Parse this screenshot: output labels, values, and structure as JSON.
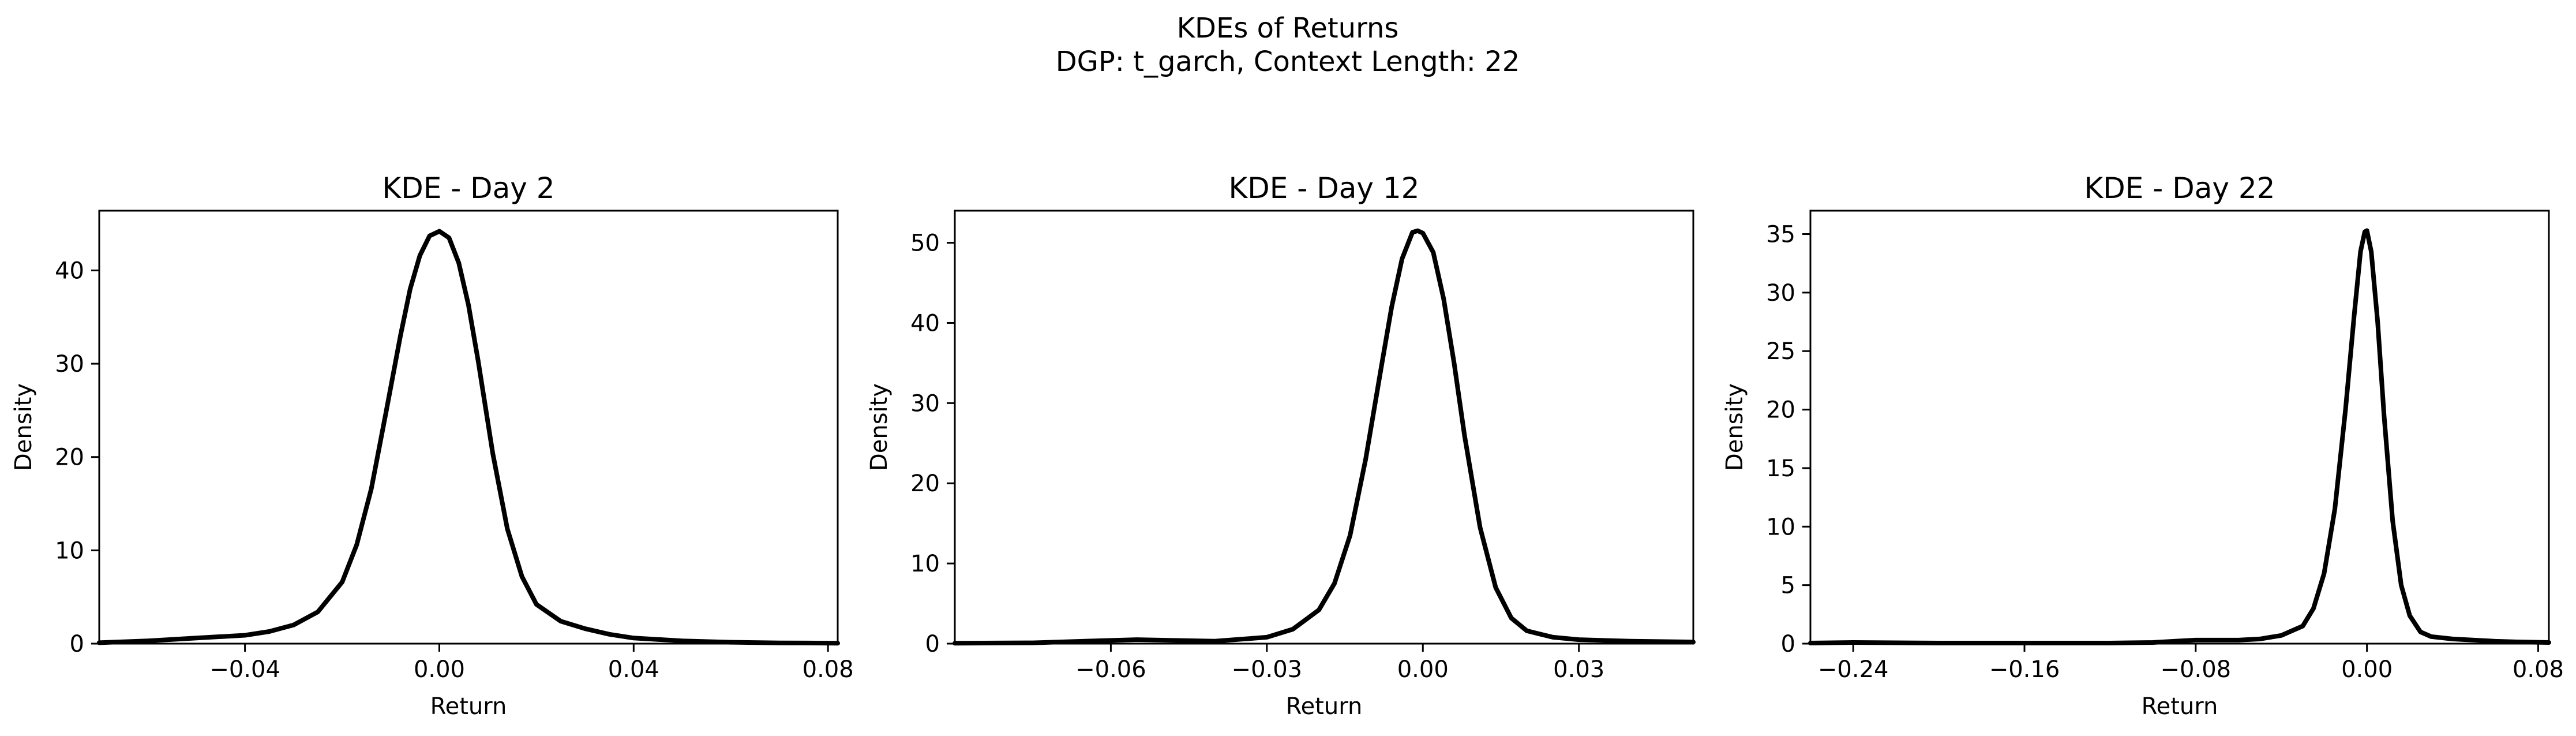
{
  "figure": {
    "suptitle_line1": "KDEs of Returns",
    "suptitle_line2": "DGP: t_garch, Context Length: 22"
  },
  "chart_data": [
    {
      "type": "line",
      "title": "KDE - Day 2",
      "xlabel": "Return",
      "ylabel": "Density",
      "xlim": [
        -0.07,
        0.082
      ],
      "ylim": [
        0,
        46.4
      ],
      "xticks": [
        -0.04,
        0.0,
        0.04,
        0.08
      ],
      "xtick_labels": [
        "−0.04",
        "0.00",
        "0.04",
        "0.08"
      ],
      "yticks": [
        0,
        10,
        20,
        30,
        40
      ],
      "ytick_labels": [
        "0",
        "10",
        "20",
        "30",
        "40"
      ],
      "grid": false,
      "series": [
        {
          "color": "#000000",
          "x": [
            -0.07,
            -0.06,
            -0.05,
            -0.04,
            -0.035,
            -0.03,
            -0.025,
            -0.02,
            -0.017,
            -0.014,
            -0.011,
            -0.008,
            -0.006,
            -0.004,
            -0.002,
            0.0,
            0.002,
            0.004,
            0.006,
            0.008,
            0.011,
            0.014,
            0.017,
            0.02,
            0.025,
            0.03,
            0.035,
            0.04,
            0.05,
            0.06,
            0.07,
            0.082
          ],
          "y": [
            0.1,
            0.3,
            0.6,
            0.9,
            1.3,
            2.0,
            3.4,
            6.6,
            10.6,
            16.6,
            24.7,
            33.0,
            38.0,
            41.6,
            43.7,
            44.2,
            43.5,
            40.8,
            36.3,
            30.3,
            20.4,
            12.3,
            7.2,
            4.2,
            2.4,
            1.6,
            1.0,
            0.6,
            0.3,
            0.15,
            0.08,
            0.05
          ]
        }
      ]
    },
    {
      "type": "line",
      "title": "KDE - Day 12",
      "xlabel": "Return",
      "ylabel": "Density",
      "xlim": [
        -0.09,
        0.052
      ],
      "ylim": [
        0,
        54.0
      ],
      "xticks": [
        -0.06,
        -0.03,
        0.0,
        0.03
      ],
      "xtick_labels": [
        "−0.06",
        "−0.03",
        "0.00",
        "0.03"
      ],
      "yticks": [
        0,
        10,
        20,
        30,
        40,
        50
      ],
      "ytick_labels": [
        "0",
        "10",
        "20",
        "30",
        "40",
        "50"
      ],
      "grid": false,
      "series": [
        {
          "color": "#000000",
          "x": [
            -0.09,
            -0.075,
            -0.065,
            -0.055,
            -0.048,
            -0.04,
            -0.03,
            -0.025,
            -0.02,
            -0.017,
            -0.014,
            -0.011,
            -0.008,
            -0.006,
            -0.004,
            -0.002,
            -0.001,
            0.0,
            0.002,
            0.004,
            0.006,
            0.008,
            0.011,
            0.014,
            0.017,
            0.02,
            0.025,
            0.03,
            0.04,
            0.052
          ],
          "y": [
            0.05,
            0.1,
            0.3,
            0.5,
            0.4,
            0.3,
            0.8,
            1.8,
            4.2,
            7.5,
            13.5,
            23.0,
            34.5,
            42.0,
            48.0,
            51.3,
            51.5,
            51.2,
            48.8,
            43.0,
            35.0,
            26.0,
            14.5,
            7.0,
            3.2,
            1.6,
            0.8,
            0.5,
            0.3,
            0.2
          ]
        }
      ]
    },
    {
      "type": "line",
      "title": "KDE - Day 22",
      "xlabel": "Return",
      "ylabel": "Density",
      "xlim": [
        -0.26,
        0.085
      ],
      "ylim": [
        0,
        37.0
      ],
      "xticks": [
        -0.24,
        -0.16,
        -0.08,
        0.0,
        0.08
      ],
      "xtick_labels": [
        "−0.24",
        "−0.16",
        "−0.08",
        "0.00",
        "0.08"
      ],
      "yticks": [
        0,
        5,
        10,
        15,
        20,
        25,
        30,
        35
      ],
      "ytick_labels": [
        "0",
        "5",
        "10",
        "15",
        "20",
        "25",
        "30",
        "35"
      ],
      "grid": false,
      "series": [
        {
          "color": "#000000",
          "x": [
            -0.26,
            -0.24,
            -0.2,
            -0.16,
            -0.12,
            -0.1,
            -0.09,
            -0.08,
            -0.07,
            -0.06,
            -0.05,
            -0.04,
            -0.03,
            -0.025,
            -0.02,
            -0.015,
            -0.01,
            -0.006,
            -0.003,
            -0.001,
            0.0,
            0.002,
            0.005,
            0.008,
            0.012,
            0.016,
            0.02,
            0.025,
            0.03,
            0.04,
            0.05,
            0.06,
            0.07,
            0.085
          ],
          "y": [
            0.05,
            0.1,
            0.05,
            0.05,
            0.05,
            0.1,
            0.2,
            0.3,
            0.3,
            0.3,
            0.4,
            0.7,
            1.5,
            3.0,
            6.0,
            11.5,
            20.0,
            28.0,
            33.5,
            35.2,
            35.3,
            33.5,
            27.5,
            19.5,
            10.5,
            5.0,
            2.4,
            1.0,
            0.6,
            0.4,
            0.3,
            0.2,
            0.15,
            0.1
          ]
        }
      ]
    }
  ]
}
